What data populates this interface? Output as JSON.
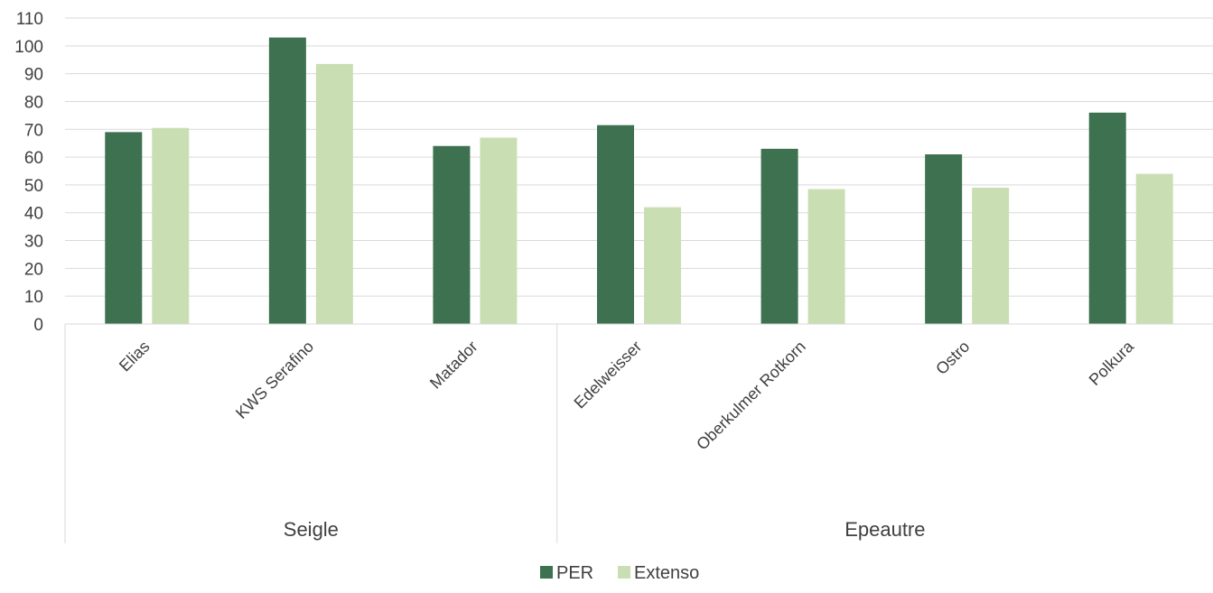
{
  "chart_data": {
    "type": "bar",
    "title": "",
    "xlabel": "",
    "ylabel": "",
    "ylim": [
      0,
      110
    ],
    "yticks": [
      "0",
      "10",
      "20",
      "30",
      "40",
      "50",
      "60",
      "70",
      "80",
      "90",
      "100",
      "110"
    ],
    "grid": true,
    "legend_position": "bottom",
    "categories": [
      "Elias",
      "KWS Serafino",
      "Matador",
      "Edelweisser",
      "Oberkulmer Rotkorn",
      "Ostro",
      "Polkura"
    ],
    "groups": [
      {
        "label": "Seigle",
        "count": 3
      },
      {
        "label": "Epeautre",
        "count": 4
      }
    ],
    "series": [
      {
        "name": "PER",
        "color": "#3d7150",
        "values": [
          69,
          103,
          64,
          71.5,
          63,
          61,
          76
        ]
      },
      {
        "name": "Extenso",
        "color": "#c9dfb3",
        "values": [
          70.5,
          93.5,
          67,
          42,
          48.5,
          49,
          54
        ]
      }
    ]
  }
}
